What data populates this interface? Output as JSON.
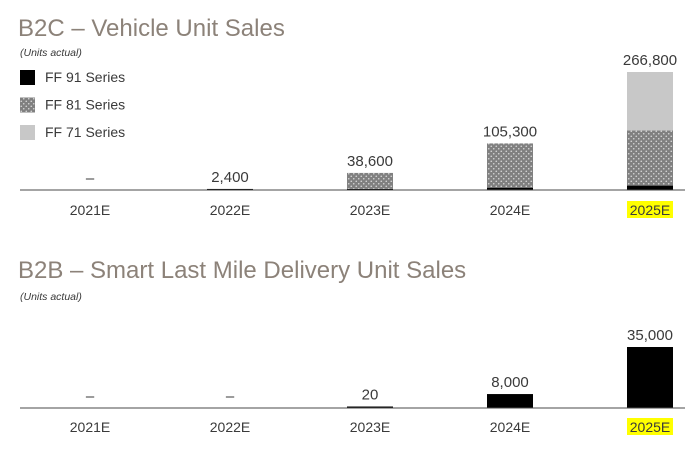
{
  "colors": {
    "title": "#8c8279",
    "text": "#3a3a3a",
    "axis": "#4a4a4a",
    "highlight": "#ffff00",
    "ff91": "#000000",
    "ff81_bg": "#808080",
    "ff81_dot": "#d9d9d9",
    "ff71": "#c8c8c8",
    "b2b_bar": "#000000"
  },
  "chart_data": [
    {
      "type": "bar",
      "stacked": true,
      "title": "B2C – Vehicle Unit Sales",
      "subtitle": "(Units actual)",
      "categories": [
        "2021E",
        "2022E",
        "2023E",
        "2024E",
        "2025E"
      ],
      "highlighted_category": "2025E",
      "series": [
        {
          "name": "FF 91 Series",
          "values": [
            0,
            2400,
            2600,
            5300,
            10000
          ]
        },
        {
          "name": "FF 81 Series",
          "values": [
            0,
            0,
            36000,
            100000,
            124800
          ]
        },
        {
          "name": "FF 71 Series",
          "values": [
            0,
            0,
            0,
            0,
            132000
          ]
        }
      ],
      "total_labels": [
        "–",
        "2,400",
        "38,600",
        "105,300",
        "266,800"
      ],
      "legend": "top-left",
      "ylim": [
        0,
        266800
      ]
    },
    {
      "type": "bar",
      "stacked": false,
      "title": "B2B – Smart Last Mile Delivery Unit Sales",
      "subtitle": "(Units actual)",
      "categories": [
        "2021E",
        "2022E",
        "2023E",
        "2024E",
        "2025E"
      ],
      "highlighted_category": "2025E",
      "series": [
        {
          "name": "Smart Last Mile Delivery",
          "values": [
            0,
            0,
            20,
            8000,
            35000
          ]
        }
      ],
      "total_labels": [
        "–",
        "–",
        "20",
        "8,000",
        "35,000"
      ],
      "ylim": [
        0,
        35000
      ]
    }
  ]
}
